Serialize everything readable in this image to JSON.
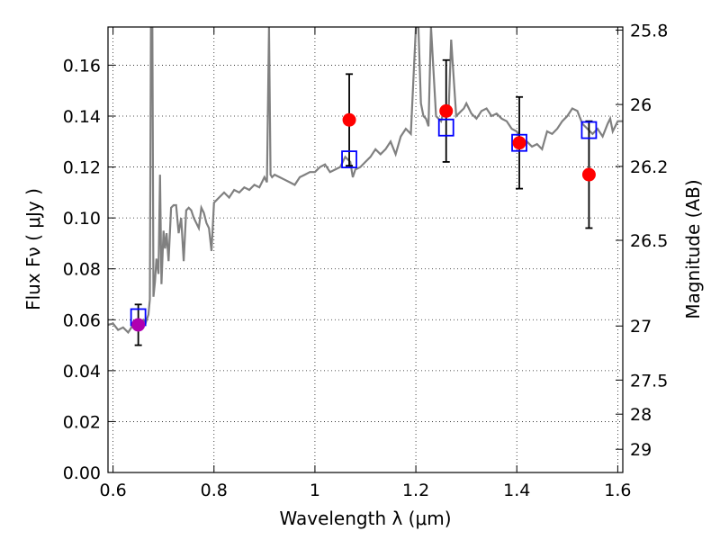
{
  "chart_data": {
    "type": "scatter",
    "xlabel": "Wavelength  λ (μm)",
    "ylabel": "Flux  Fν  ( μJy )",
    "ylabel_right": "Magnitude (AB)",
    "xlim": [
      0.59,
      1.61
    ],
    "ylim": [
      0.0,
      0.175
    ],
    "grid": true,
    "x_ticks": [
      0.6,
      0.8,
      1.0,
      1.2,
      1.4,
      1.6
    ],
    "x_tick_labels": [
      "0.6",
      "0.8",
      "1",
      "1.2",
      "1.4",
      "1.6"
    ],
    "y_ticks": [
      0.0,
      0.02,
      0.04,
      0.06,
      0.08,
      0.1,
      0.12,
      0.14,
      0.16
    ],
    "y_tick_labels": [
      "0.00",
      "0.02",
      "0.04",
      "0.06",
      "0.08",
      "0.10",
      "0.12",
      "0.14",
      "0.16"
    ],
    "mag_ticks": [
      25.8,
      26,
      26.2,
      26.5,
      27,
      27.5,
      28,
      29
    ],
    "mag_tick_labels": [
      "25.8",
      "26",
      "26.2",
      "26.5",
      "27",
      "27.5",
      "28",
      "29"
    ],
    "colors": {
      "spectrum": "#808080",
      "observed": "#ff0000",
      "observed_first": "#b000b0",
      "model": "#0000ff",
      "errorbar": "#000000"
    },
    "series": [
      {
        "type": "line",
        "x": [
          0.59,
          0.6,
          0.61,
          0.62,
          0.63,
          0.64,
          0.65,
          0.66,
          0.665,
          0.67,
          0.673,
          0.675,
          0.678,
          0.68,
          0.683,
          0.686,
          0.69,
          0.693,
          0.696,
          0.7,
          0.703,
          0.706,
          0.71,
          0.715,
          0.72,
          0.725,
          0.73,
          0.735,
          0.74,
          0.745,
          0.75,
          0.755,
          0.76,
          0.765,
          0.77,
          0.775,
          0.78,
          0.785,
          0.79,
          0.795,
          0.8,
          0.81,
          0.82,
          0.83,
          0.84,
          0.85,
          0.86,
          0.87,
          0.88,
          0.89,
          0.9,
          0.905,
          0.909,
          0.912,
          0.915,
          0.92,
          0.93,
          0.94,
          0.95,
          0.96,
          0.97,
          0.98,
          0.99,
          1.0,
          1.01,
          1.02,
          1.03,
          1.04,
          1.05,
          1.06,
          1.07,
          1.075,
          1.08,
          1.09,
          1.1,
          1.11,
          1.12,
          1.13,
          1.14,
          1.15,
          1.16,
          1.17,
          1.18,
          1.19,
          1.2,
          1.205,
          1.21,
          1.215,
          1.22,
          1.225,
          1.23,
          1.24,
          1.25,
          1.255,
          1.26,
          1.265,
          1.27,
          1.28,
          1.29,
          1.295,
          1.3,
          1.31,
          1.32,
          1.33,
          1.34,
          1.35,
          1.36,
          1.37,
          1.38,
          1.39,
          1.4,
          1.41,
          1.42,
          1.43,
          1.44,
          1.45,
          1.46,
          1.47,
          1.48,
          1.49,
          1.5,
          1.51,
          1.52,
          1.53,
          1.54,
          1.55,
          1.56,
          1.57,
          1.58,
          1.585,
          1.59,
          1.6,
          1.61
        ],
        "y": [
          0.058,
          0.0585,
          0.056,
          0.057,
          0.055,
          0.058,
          0.057,
          0.06,
          0.059,
          0.062,
          0.068,
          0.178,
          0.178,
          0.069,
          0.075,
          0.084,
          0.078,
          0.117,
          0.074,
          0.095,
          0.088,
          0.094,
          0.083,
          0.104,
          0.105,
          0.105,
          0.094,
          0.1,
          0.083,
          0.103,
          0.104,
          0.103,
          0.1,
          0.098,
          0.096,
          0.104,
          0.102,
          0.098,
          0.096,
          0.087,
          0.106,
          0.108,
          0.11,
          0.108,
          0.111,
          0.11,
          0.112,
          0.111,
          0.113,
          0.112,
          0.116,
          0.114,
          0.178,
          0.117,
          0.116,
          0.117,
          0.116,
          0.115,
          0.114,
          0.113,
          0.116,
          0.117,
          0.118,
          0.118,
          0.12,
          0.121,
          0.118,
          0.119,
          0.12,
          0.124,
          0.122,
          0.116,
          0.119,
          0.12,
          0.122,
          0.124,
          0.127,
          0.125,
          0.127,
          0.13,
          0.125,
          0.132,
          0.135,
          0.133,
          0.178,
          0.178,
          0.145,
          0.14,
          0.139,
          0.136,
          0.178,
          0.14,
          0.138,
          0.142,
          0.141,
          0.142,
          0.17,
          0.14,
          0.142,
          0.143,
          0.145,
          0.141,
          0.139,
          0.142,
          0.143,
          0.14,
          0.141,
          0.139,
          0.138,
          0.135,
          0.134,
          0.13,
          0.13,
          0.128,
          0.129,
          0.127,
          0.134,
          0.133,
          0.135,
          0.138,
          0.14,
          0.143,
          0.142,
          0.137,
          0.135,
          0.133,
          0.135,
          0.132,
          0.137,
          0.139,
          0.134,
          0.138,
          0.138
        ]
      },
      {
        "type": "scatter",
        "marker": "circle",
        "x": [
          0.65,
          1.068,
          1.26,
          1.405,
          1.543
        ],
        "y": [
          0.058,
          0.1385,
          0.142,
          0.1295,
          0.117
        ],
        "err": [
          0.008,
          0.018,
          0.02,
          0.018,
          0.021
        ]
      },
      {
        "type": "scatter",
        "marker": "open-square",
        "x": [
          0.65,
          1.068,
          1.26,
          1.405,
          1.543
        ],
        "y": [
          0.061,
          0.123,
          0.1355,
          0.1295,
          0.1345
        ]
      }
    ]
  }
}
